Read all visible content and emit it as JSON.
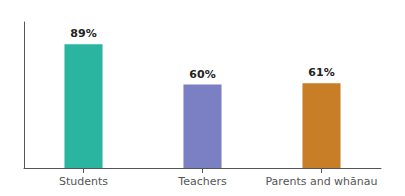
{
  "chart_data": {
    "type": "bar",
    "categories": [
      "Students",
      "Teachers",
      "Parents and whānau"
    ],
    "values": [
      89,
      60,
      61
    ],
    "value_labels": [
      "89%",
      "60%",
      "61%"
    ],
    "colors": [
      "#2ab5a0",
      "#7b7fc4",
      "#c87d27"
    ],
    "ylim": [
      0,
      105
    ],
    "yticks": [],
    "grid": false,
    "data_labels": true,
    "tick_labels": "x"
  }
}
